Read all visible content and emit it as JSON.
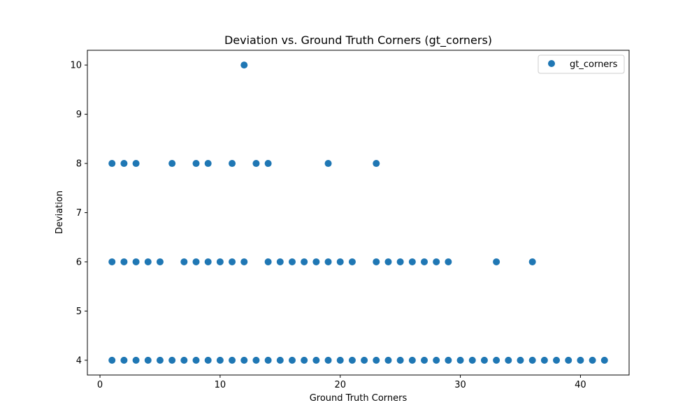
{
  "chart_data": {
    "type": "scatter",
    "title": "Deviation vs. Ground Truth Corners (gt_corners)",
    "xlabel": "Ground Truth Corners",
    "ylabel": "Deviation",
    "xlim": [
      -1.05,
      44.05
    ],
    "ylim": [
      3.7,
      10.3
    ],
    "xticks": [
      0,
      10,
      20,
      30,
      40
    ],
    "yticks": [
      4,
      5,
      6,
      7,
      8,
      9,
      10
    ],
    "grid": false,
    "legend_position": "top-right",
    "series": [
      {
        "name": "gt_corners",
        "color": "#1f77b4",
        "points": [
          [
            1,
            4
          ],
          [
            2,
            4
          ],
          [
            3,
            4
          ],
          [
            4,
            4
          ],
          [
            5,
            4
          ],
          [
            6,
            4
          ],
          [
            7,
            4
          ],
          [
            8,
            4
          ],
          [
            9,
            4
          ],
          [
            10,
            4
          ],
          [
            11,
            4
          ],
          [
            12,
            4
          ],
          [
            13,
            4
          ],
          [
            14,
            4
          ],
          [
            15,
            4
          ],
          [
            16,
            4
          ],
          [
            17,
            4
          ],
          [
            18,
            4
          ],
          [
            19,
            4
          ],
          [
            20,
            4
          ],
          [
            21,
            4
          ],
          [
            22,
            4
          ],
          [
            23,
            4
          ],
          [
            24,
            4
          ],
          [
            25,
            4
          ],
          [
            26,
            4
          ],
          [
            27,
            4
          ],
          [
            28,
            4
          ],
          [
            29,
            4
          ],
          [
            30,
            4
          ],
          [
            31,
            4
          ],
          [
            32,
            4
          ],
          [
            33,
            4
          ],
          [
            34,
            4
          ],
          [
            35,
            4
          ],
          [
            36,
            4
          ],
          [
            37,
            4
          ],
          [
            38,
            4
          ],
          [
            39,
            4
          ],
          [
            40,
            4
          ],
          [
            41,
            4
          ],
          [
            42,
            4
          ],
          [
            1,
            6
          ],
          [
            2,
            6
          ],
          [
            3,
            6
          ],
          [
            4,
            6
          ],
          [
            5,
            6
          ],
          [
            7,
            6
          ],
          [
            8,
            6
          ],
          [
            9,
            6
          ],
          [
            10,
            6
          ],
          [
            11,
            6
          ],
          [
            12,
            6
          ],
          [
            14,
            6
          ],
          [
            15,
            6
          ],
          [
            16,
            6
          ],
          [
            17,
            6
          ],
          [
            18,
            6
          ],
          [
            19,
            6
          ],
          [
            20,
            6
          ],
          [
            21,
            6
          ],
          [
            23,
            6
          ],
          [
            24,
            6
          ],
          [
            25,
            6
          ],
          [
            26,
            6
          ],
          [
            27,
            6
          ],
          [
            28,
            6
          ],
          [
            29,
            6
          ],
          [
            33,
            6
          ],
          [
            36,
            6
          ],
          [
            1,
            8
          ],
          [
            2,
            8
          ],
          [
            3,
            8
          ],
          [
            6,
            8
          ],
          [
            8,
            8
          ],
          [
            9,
            8
          ],
          [
            11,
            8
          ],
          [
            13,
            8
          ],
          [
            14,
            8
          ],
          [
            19,
            8
          ],
          [
            23,
            8
          ],
          [
            12,
            10
          ]
        ]
      }
    ]
  }
}
